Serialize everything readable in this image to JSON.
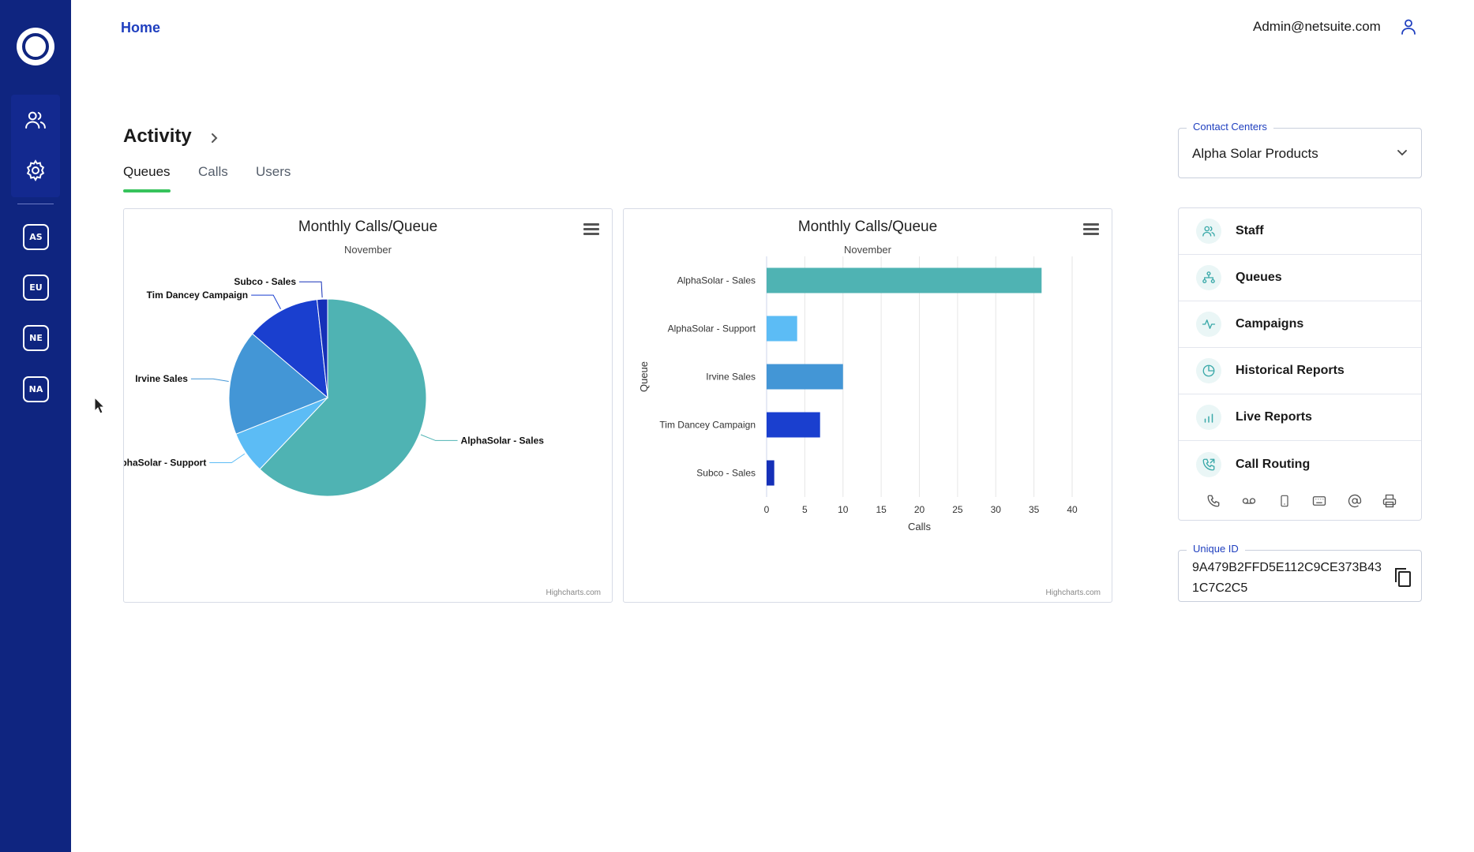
{
  "header": {
    "home_label": "Home",
    "user_email": "Admin@netsuite.com"
  },
  "sidebar": {
    "icons": [
      "users-icon",
      "gear-icon"
    ],
    "badges": [
      "AS",
      "EU",
      "NE",
      "NA"
    ]
  },
  "activity": {
    "title": "Activity",
    "tabs": [
      "Queues",
      "Calls",
      "Users"
    ],
    "active_tab": "Queues"
  },
  "charts": {
    "credit": "Highcharts.com"
  },
  "chart_data": [
    {
      "type": "pie",
      "title": "Monthly Calls/Queue",
      "subtitle": "November",
      "slices": [
        {
          "name": "AlphaSolar - Sales",
          "value": 36,
          "color": "#4fb3b3"
        },
        {
          "name": "AlphaSolar - Support",
          "value": 4,
          "color": "#5cbcf5"
        },
        {
          "name": "Irvine Sales",
          "value": 10,
          "color": "#4396d6"
        },
        {
          "name": "Tim Dancey Campaign",
          "value": 7,
          "color": "#1a3fcf"
        },
        {
          "name": "Subco - Sales",
          "value": 1,
          "color": "#1530b8"
        }
      ]
    },
    {
      "type": "bar",
      "title": "Monthly Calls/Queue",
      "subtitle": "November",
      "categories": [
        "AlphaSolar - Sales",
        "AlphaSolar - Support",
        "Irvine Sales",
        "Tim Dancey Campaign",
        "Subco - Sales"
      ],
      "values": [
        36,
        4,
        10,
        7,
        1
      ],
      "colors": [
        "#4fb3b3",
        "#5cbcf5",
        "#4396d6",
        "#1a3fcf",
        "#1530b8"
      ],
      "xlabel": "Calls",
      "ylabel": "Queue",
      "xlim": [
        0,
        40
      ],
      "ticks": [
        0,
        5,
        10,
        15,
        20,
        25,
        30,
        35,
        40
      ],
      "grid": true
    }
  ],
  "right_panel": {
    "contact_centers_label": "Contact Centers",
    "contact_centers_value": "Alpha Solar Products",
    "nav": [
      {
        "label": "Staff",
        "icon": "staff-icon"
      },
      {
        "label": "Queues",
        "icon": "queues-icon"
      },
      {
        "label": "Campaigns",
        "icon": "campaigns-icon"
      },
      {
        "label": "Historical Reports",
        "icon": "historical-reports-icon"
      },
      {
        "label": "Live Reports",
        "icon": "live-reports-icon"
      },
      {
        "label": "Call Routing",
        "icon": "call-routing-icon"
      }
    ],
    "quick_icons": [
      "phone-icon",
      "voicemail-icon",
      "mobile-icon",
      "keyboard-icon",
      "at-icon",
      "printer-icon"
    ],
    "unique_id_label": "Unique ID",
    "unique_id_value": "9A479B2FFD5E112C9CE373B431C7C2C5"
  },
  "colors": {
    "sidebar": "#0f2580",
    "accent_link": "#1f3fbf",
    "tab_underline": "#37c35c"
  }
}
